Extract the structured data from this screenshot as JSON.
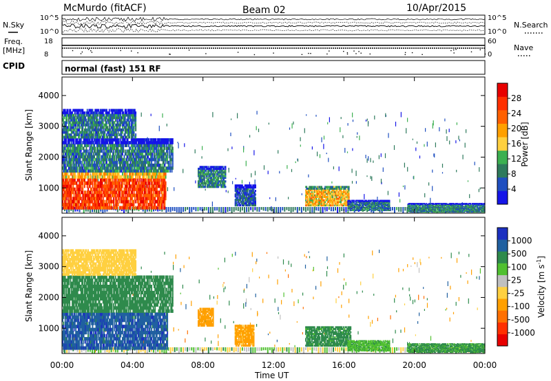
{
  "header": {
    "station": "McMurdo (fitACF)",
    "beam": "Beam 02",
    "date": "10/Apr/2015"
  },
  "strip_labels": {
    "nsky": "N.Sky",
    "nsearch": "N.Search",
    "freq": "Freq.",
    "freq_unit": "[MHz]",
    "nave": "Nave",
    "cpid": "CPID",
    "cpid_value": "normal (fast) 151 RF"
  },
  "strip_ticks": {
    "noise_left": [
      "10^5",
      "10^0"
    ],
    "noise_right": [
      "10^5",
      "10^0"
    ],
    "freq_left": [
      "18",
      "8"
    ],
    "nave_right": [
      "60",
      "0"
    ]
  },
  "colors": {
    "power_scale": [
      "#1515e8",
      "#1f4fc0",
      "#2e7a5c",
      "#3cb050",
      "#ffd040",
      "#ffa000",
      "#ff6000",
      "#ff3000",
      "#e80000"
    ],
    "velocity_scale": [
      "#e80000",
      "#ff3000",
      "#ff7000",
      "#ffa000",
      "#ffd040",
      "#c0c0c0",
      "#50c030",
      "#2e8a4c",
      "#2060a0",
      "#1c30c0"
    ]
  },
  "chart_data": [
    {
      "type": "heatmap",
      "title": "",
      "xlabel": "Time UT",
      "ylabel": "Slant Range [km]",
      "xlim": [
        "00:00",
        "24:00"
      ],
      "ylim": [
        180,
        4600
      ],
      "x_ticks": [
        "00:00",
        "04:00",
        "08:00",
        "12:00",
        "16:00",
        "20:00",
        "00:00"
      ],
      "y_ticks": [
        1000,
        2000,
        3000,
        4000
      ],
      "colorbar": {
        "label": "Power [dB]",
        "range": [
          0,
          32
        ],
        "ticks": [
          4,
          8,
          12,
          16,
          20,
          24,
          28
        ]
      },
      "regions": [
        {
          "t_start": 0.0,
          "t_end": 5.9,
          "r_min": 300,
          "r_max": 1500,
          "value": 26
        },
        {
          "t_start": 0.0,
          "t_end": 6.3,
          "r_min": 1500,
          "r_max": 2600,
          "value": 8
        },
        {
          "t_start": 0.0,
          "t_end": 4.2,
          "r_min": 2600,
          "r_max": 3550,
          "value": 8
        },
        {
          "t_start": 7.7,
          "t_end": 9.3,
          "r_min": 1000,
          "r_max": 1700,
          "value": 9
        },
        {
          "t_start": 9.8,
          "t_end": 11.0,
          "r_min": 400,
          "r_max": 1100,
          "value": 6
        },
        {
          "t_start": 13.8,
          "t_end": 16.3,
          "r_min": 400,
          "r_max": 1050,
          "value": 18
        },
        {
          "t_start": 16.2,
          "t_end": 18.6,
          "r_min": 250,
          "r_max": 600,
          "value": 8
        },
        {
          "t_start": 19.6,
          "t_end": 24.0,
          "r_min": 200,
          "r_max": 500,
          "value": 9
        }
      ]
    },
    {
      "type": "heatmap",
      "title": "",
      "xlabel": "Time UT",
      "ylabel": "Slant Range [km]",
      "xlim": [
        "00:00",
        "24:00"
      ],
      "ylim": [
        180,
        4600
      ],
      "x_ticks": [
        "00:00",
        "04:00",
        "08:00",
        "12:00",
        "16:00",
        "20:00",
        "00:00"
      ],
      "y_ticks": [
        1000,
        2000,
        3000,
        4000
      ],
      "colorbar": {
        "label": "Velocity [m s^-1]",
        "ticks": [
          "1000",
          "500",
          "100",
          "25",
          "-25",
          "-100",
          "-500",
          "-1000"
        ]
      },
      "regions": [
        {
          "t_start": 0.0,
          "t_end": 6.0,
          "r_min": 300,
          "r_max": 1500,
          "value": 800
        },
        {
          "t_start": 0.0,
          "t_end": 6.3,
          "r_min": 1500,
          "r_max": 2700,
          "value": 200
        },
        {
          "t_start": 0.0,
          "t_end": 4.2,
          "r_min": 2700,
          "r_max": 3550,
          "value": -50
        },
        {
          "t_start": 7.7,
          "t_end": 8.6,
          "r_min": 1050,
          "r_max": 1650,
          "value": -300
        },
        {
          "t_start": 9.8,
          "t_end": 10.9,
          "r_min": 400,
          "r_max": 1100,
          "value": -150
        },
        {
          "t_start": 13.8,
          "t_end": 16.4,
          "r_min": 400,
          "r_max": 1050,
          "value": 150
        },
        {
          "t_start": 16.2,
          "t_end": 18.6,
          "r_min": 250,
          "r_max": 600,
          "value": 80
        },
        {
          "t_start": 19.6,
          "t_end": 24.0,
          "r_min": 200,
          "r_max": 500,
          "value": 120
        }
      ]
    }
  ]
}
